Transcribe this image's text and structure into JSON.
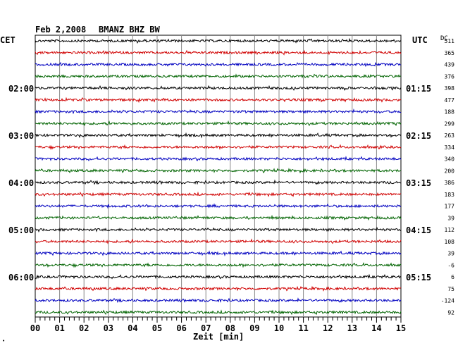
{
  "header": {
    "date": "Feb 2,2008",
    "station": "BMANZ BHZ BW",
    "left_tz": "CET",
    "right_tz": "UTC",
    "dc_label": "DC"
  },
  "footer": {
    "xlabel": "Zeit [min]",
    "corner_mark": "•"
  },
  "chart_data": {
    "type": "line",
    "title": "Feb 2,2008   BMANZ BHZ BW",
    "xlabel": "Zeit [min]",
    "xlim": [
      0,
      15
    ],
    "x_ticks": [
      "00",
      "01",
      "02",
      "03",
      "04",
      "05",
      "06",
      "07",
      "08",
      "09",
      "10",
      "11",
      "12",
      "13",
      "14",
      "15"
    ],
    "colors": [
      "#000000",
      "#d00000",
      "#0000c0",
      "#006400"
    ],
    "trace_count": 24,
    "left_hour_labels": [
      {
        "trace": 4,
        "label": "02:00"
      },
      {
        "trace": 8,
        "label": "03:00"
      },
      {
        "trace": 12,
        "label": "04:00"
      },
      {
        "trace": 16,
        "label": "05:00"
      },
      {
        "trace": 20,
        "label": "06:00"
      }
    ],
    "right_hour_labels": [
      {
        "trace": 4,
        "label": "01:15"
      },
      {
        "trace": 8,
        "label": "02:15"
      },
      {
        "trace": 12,
        "label": "03:15"
      },
      {
        "trace": 16,
        "label": "04:15"
      },
      {
        "trace": 20,
        "label": "05:15"
      }
    ],
    "dc_offsets": [
      "511",
      "365",
      "439",
      "376",
      "398",
      "477",
      "188",
      "299",
      "263",
      "334",
      "340",
      "200",
      "386",
      "183",
      "177",
      "39",
      "112",
      "108",
      "39",
      "-6",
      "6",
      "75",
      "-124",
      "92"
    ],
    "grid": true
  }
}
